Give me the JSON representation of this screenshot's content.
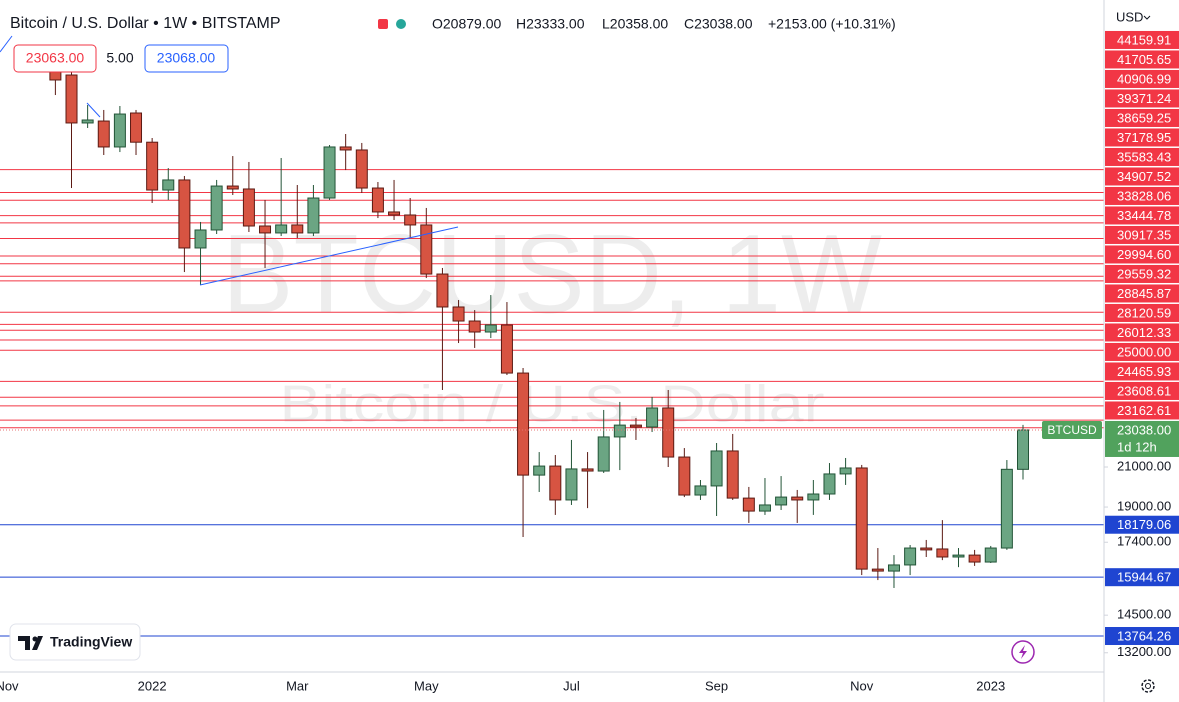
{
  "chart_data": {
    "type": "candlestick",
    "title": "Bitcoin / U.S. Dollar • 1W • BITSTAMP",
    "ohlc_text": [
      "O20879.00",
      "H23333.00",
      "L20358.00",
      "C23038.00",
      "+2153.00 (+10.31%)"
    ],
    "quote": {
      "sell": "23063.00",
      "spread": "5.00",
      "buy": "23068.00"
    },
    "watermark": "BTCUSD, 1W",
    "watermark_subtitle": "Bitcoin / U.S. Dollar",
    "symbol": "BTCUSD",
    "last_price_label": "23038.00",
    "countdown": "1d 12h",
    "currency": "USD",
    "brand": "TradingView",
    "log_scale": true,
    "ylim": [
      12580,
      67490
    ],
    "yticks": [
      {
        "value": 21000,
        "label": "21000.00"
      },
      {
        "value": 19000,
        "label": "19000.00"
      },
      {
        "value": 17400,
        "label": "17400.00"
      },
      {
        "value": 14500,
        "label": "14500.00"
      },
      {
        "value": 13200,
        "label": "13200.00"
      }
    ],
    "up_color": "#6ba583",
    "down_color": "#d75442",
    "categories": [
      "Nov",
      null,
      null,
      null,
      null,
      null,
      null,
      null,
      null,
      "2022",
      null,
      null,
      null,
      null,
      null,
      null,
      null,
      null,
      "Mar",
      null,
      null,
      null,
      null,
      null,
      null,
      null,
      "May",
      null,
      null,
      null,
      null,
      null,
      null,
      null,
      null,
      "Jul",
      null,
      null,
      null,
      null,
      null,
      null,
      null,
      null,
      "Sep",
      null,
      null,
      null,
      null,
      null,
      null,
      null,
      null,
      "Nov",
      null,
      null,
      null,
      null,
      null,
      null,
      null,
      "2023",
      null,
      null
    ],
    "open": [
      null,
      null,
      null,
      58820,
      55950,
      49630,
      49870,
      46740,
      50880,
      47300,
      41970,
      43040,
      36310,
      37980,
      42390,
      42080,
      38360,
      37700,
      38460,
      37700,
      41140,
      46740,
      46390,
      42180,
      39730,
      39430,
      38460,
      34020,
      31330,
      30250,
      29430,
      29950,
      26560,
      20580,
      21050,
      19340,
      20900,
      20790,
      22640,
      23320,
      23210,
      24340,
      21530,
      19580,
      20030,
      21860,
      19430,
      18810,
      19100,
      19480,
      19340,
      19630,
      20640,
      20950,
      16270,
      16190,
      16440,
      17150,
      17110,
      16770,
      16850,
      16560,
      17150,
      20879
    ],
    "high": [
      null,
      null,
      null,
      60310,
      56370,
      51910,
      51270,
      51780,
      51270,
      47800,
      44340,
      43470,
      38750,
      43040,
      45690,
      45020,
      40940,
      45470,
      42500,
      42500,
      46970,
      48280,
      47210,
      42820,
      43040,
      41140,
      40130,
      34540,
      31880,
      31090,
      32280,
      31720,
      26900,
      21800,
      21640,
      22470,
      21800,
      24220,
      24710,
      23740,
      25020,
      25460,
      22020,
      20330,
      22300,
      22810,
      19980,
      20430,
      20530,
      19830,
      20330,
      21210,
      21480,
      21110,
      17150,
      16850,
      17280,
      17500,
      18390,
      17150,
      17070,
      17240,
      21370,
      23333
    ],
    "low": [
      null,
      null,
      null,
      53220,
      42180,
      49010,
      45810,
      46150,
      45810,
      40630,
      40940,
      34190,
      33100,
      37600,
      41450,
      37790,
      34540,
      37410,
      37230,
      37410,
      40940,
      44120,
      41660,
      39130,
      38940,
      37230,
      33680,
      25460,
      28630,
      28280,
      28990,
      26430,
      17630,
      19730,
      18630,
      19100,
      18950,
      20690,
      20840,
      22470,
      22920,
      21000,
      19480,
      19340,
      18580,
      19340,
      18260,
      18630,
      18860,
      18260,
      18630,
      19340,
      20080,
      16030,
      15830,
      15520,
      16030,
      16770,
      16640,
      16350,
      16400,
      16520,
      17070,
      20358
    ],
    "close": [
      null,
      null,
      null,
      55260,
      49630,
      50000,
      46740,
      50750,
      47300,
      41970,
      43040,
      36310,
      37980,
      42390,
      42080,
      38360,
      37700,
      38460,
      37700,
      41140,
      46740,
      46390,
      42180,
      39730,
      39430,
      38460,
      34020,
      31330,
      30250,
      29430,
      29950,
      26560,
      20580,
      21050,
      19340,
      20900,
      20790,
      22640,
      23320,
      23210,
      24340,
      21530,
      19580,
      20030,
      21860,
      19430,
      18810,
      19100,
      19480,
      19340,
      19630,
      20640,
      20950,
      16270,
      16190,
      16440,
      17150,
      17070,
      16770,
      16850,
      16560,
      17150,
      20880,
      23038
    ],
    "resistance_levels": {
      "color": "#f23645",
      "values": [
        44159.91,
        41705.65,
        40906.99,
        39371.24,
        38659.25,
        37178.95,
        35583.43,
        34907.52,
        33828.06,
        33444.78,
        30917.35,
        29994.6,
        29559.32,
        28845.87,
        28120.59,
        26012.33,
        25000,
        24465.93,
        23608.61,
        23162.61
      ],
      "value_labels": [
        "44159.91",
        "41705.65",
        "40906.99",
        "39371.24",
        "38659.25",
        "37178.95",
        "35583.43",
        "34907.52",
        "33828.06",
        "33444.78",
        "30917.35",
        "29994.60",
        "29559.32",
        "28845.87",
        "28120.59",
        "26012.33",
        "25000.00",
        "24465.93",
        "23608.61",
        "23162.61"
      ]
    },
    "support_levels": {
      "color": "#1f45d1",
      "values": [
        18179.06,
        15944.67,
        13764.26
      ],
      "value_labels": [
        "18179.06",
        "15944.67",
        "13764.26"
      ]
    }
  }
}
